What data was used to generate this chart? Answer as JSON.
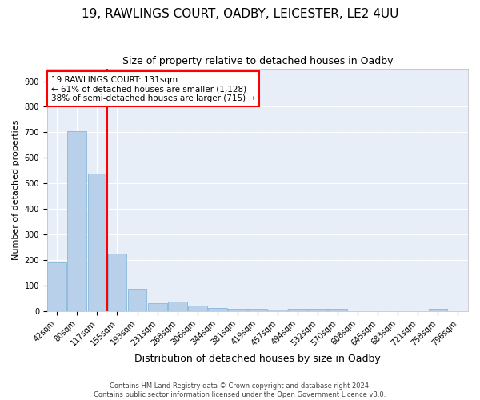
{
  "title": "19, RAWLINGS COURT, OADBY, LEICESTER, LE2 4UU",
  "subtitle": "Size of property relative to detached houses in Oadby",
  "xlabel": "Distribution of detached houses by size in Oadby",
  "ylabel": "Number of detached properties",
  "categories": [
    "42sqm",
    "80sqm",
    "117sqm",
    "155sqm",
    "193sqm",
    "231sqm",
    "268sqm",
    "306sqm",
    "344sqm",
    "381sqm",
    "419sqm",
    "457sqm",
    "494sqm",
    "532sqm",
    "570sqm",
    "608sqm",
    "645sqm",
    "683sqm",
    "721sqm",
    "758sqm",
    "796sqm"
  ],
  "values": [
    190,
    705,
    540,
    225,
    88,
    30,
    38,
    22,
    14,
    10,
    8,
    5,
    10,
    8,
    8,
    0,
    0,
    0,
    0,
    8,
    0
  ],
  "bar_color": "#b8d0ea",
  "bar_edgecolor": "#7aafd4",
  "vline_x": 2.5,
  "vline_color": "red",
  "annotation_text": "19 RAWLINGS COURT: 131sqm\n← 61% of detached houses are smaller (1,128)\n38% of semi-detached houses are larger (715) →",
  "annotation_box_facecolor": "white",
  "annotation_box_edgecolor": "red",
  "ylim": [
    0,
    950
  ],
  "yticks": [
    0,
    100,
    200,
    300,
    400,
    500,
    600,
    700,
    800,
    900
  ],
  "bg_color": "#e8eef8",
  "grid_color": "white",
  "footer": "Contains HM Land Registry data © Crown copyright and database right 2024.\nContains public sector information licensed under the Open Government Licence v3.0.",
  "title_fontsize": 11,
  "subtitle_fontsize": 9,
  "xlabel_fontsize": 9,
  "ylabel_fontsize": 8,
  "tick_fontsize": 7,
  "annotation_fontsize": 7.5
}
